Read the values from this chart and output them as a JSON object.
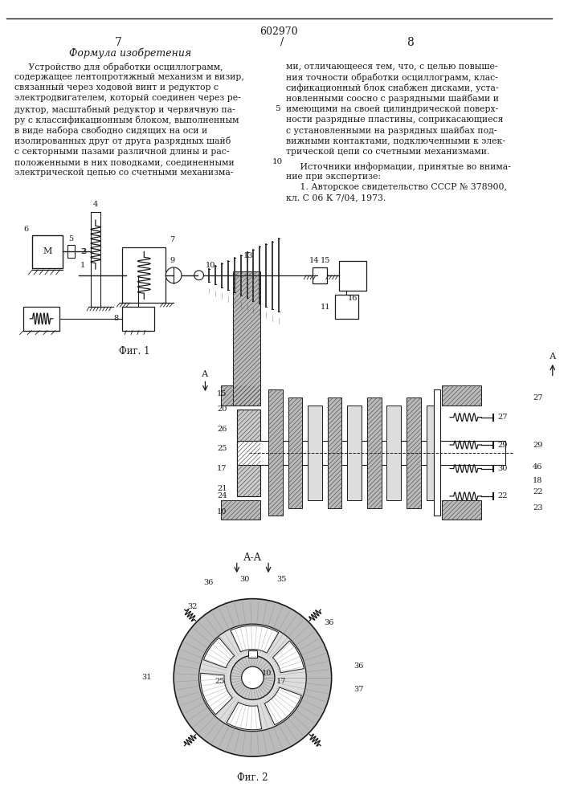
{
  "page_number_center": "602970",
  "page_left": "7",
  "page_right": "8",
  "col_left_header": "Формула изобретения",
  "fig1_label": "Фиг. 1",
  "fig2_label": "Фиг. 2",
  "fig_aa_label": "А-А",
  "background_color": "#ffffff",
  "text_color": "#1a1a1a",
  "line_color": "#1a1a1a",
  "hatch_color": "#555555"
}
